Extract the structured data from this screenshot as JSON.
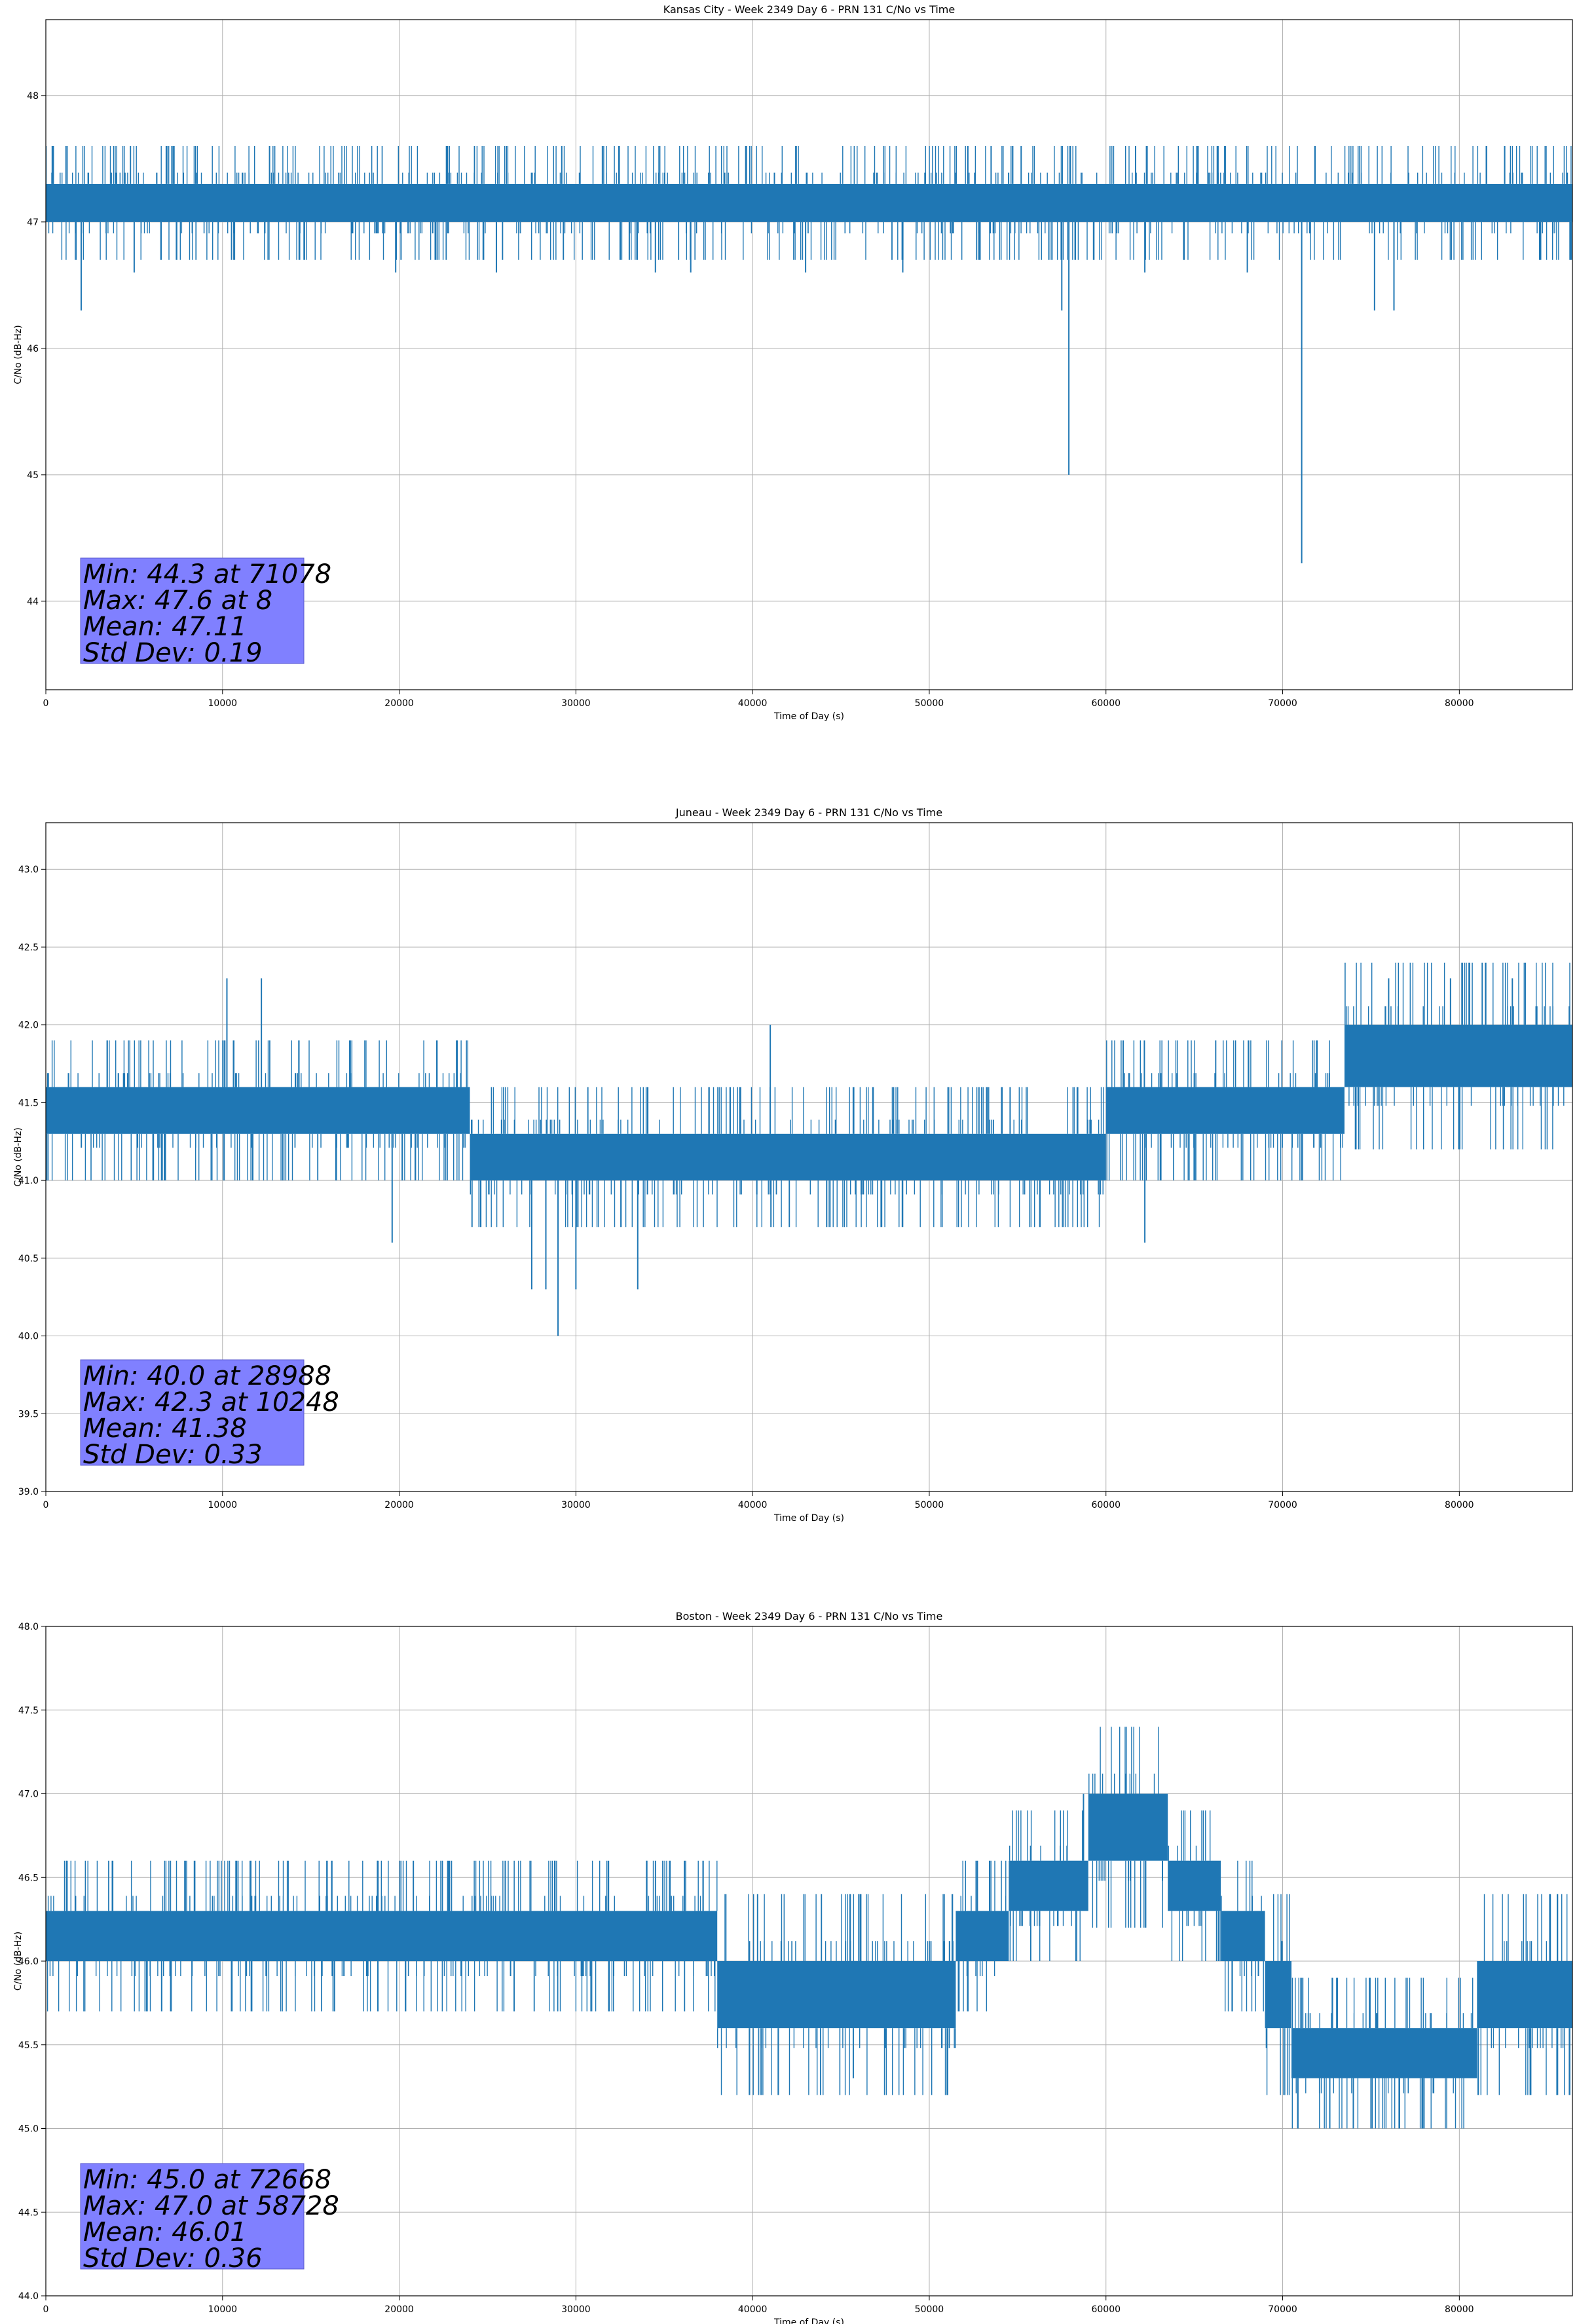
{
  "chart_data": [
    {
      "type": "line",
      "title": "Kansas City - Week 2349 Day 6 - PRN 131 C/No vs Time",
      "xlabel": "Time of Day (s)",
      "ylabel": "C/No (dB-Hz)",
      "xlim": [
        0,
        86400
      ],
      "ylim": [
        43.3,
        48.6
      ],
      "xticks": [
        0,
        10000,
        20000,
        30000,
        40000,
        50000,
        60000,
        70000,
        80000
      ],
      "xtick_labels": [
        "0",
        "10000",
        "20000",
        "30000",
        "40000",
        "50000",
        "60000",
        "70000",
        "80000"
      ],
      "yticks": [
        44,
        45,
        46,
        47,
        48
      ],
      "ytick_labels": [
        "44",
        "45",
        "46",
        "47",
        "48"
      ],
      "grid": true,
      "color": "#1f77b4",
      "stats": [
        "Min: 44.3 at 71078",
        "Max: 47.6 at 8",
        "Mean: 47.11",
        "Std Dev: 0.19"
      ],
      "stats_box_color": "#8080ff",
      "baseline_segments": [
        [
          0,
          86400,
          47.0,
          47.3
        ]
      ],
      "spikes": [
        {
          "t": 2000,
          "v": 46.3
        },
        {
          "t": 5000,
          "v": 46.6
        },
        {
          "t": 19800,
          "v": 46.6
        },
        {
          "t": 25500,
          "v": 46.6
        },
        {
          "t": 34500,
          "v": 46.6
        },
        {
          "t": 36500,
          "v": 46.6
        },
        {
          "t": 43000,
          "v": 46.6
        },
        {
          "t": 48500,
          "v": 46.6
        },
        {
          "t": 57500,
          "v": 46.3
        },
        {
          "t": 57900,
          "v": 45.0
        },
        {
          "t": 62200,
          "v": 46.6
        },
        {
          "t": 68000,
          "v": 46.6
        },
        {
          "t": 71078,
          "v": 44.3
        },
        {
          "t": 75200,
          "v": 46.3
        },
        {
          "t": 76300,
          "v": 46.3
        },
        {
          "t": 8,
          "v": 47.6
        },
        {
          "t": 400,
          "v": 47.6
        },
        {
          "t": 1200,
          "v": 47.6
        },
        {
          "t": 7200,
          "v": 47.6
        },
        {
          "t": 29200,
          "v": 47.6
        },
        {
          "t": 31500,
          "v": 47.6
        },
        {
          "t": 53500,
          "v": 47.6
        },
        {
          "t": 55200,
          "v": 47.6
        },
        {
          "t": 65200,
          "v": 47.6
        },
        {
          "t": 66300,
          "v": 47.6
        }
      ]
    },
    {
      "type": "line",
      "title": "Juneau - Week 2349 Day 6 - PRN 131 C/No vs Time",
      "xlabel": "Time of Day (s)",
      "ylabel": "C/No (dB-Hz)",
      "xlim": [
        0,
        86400
      ],
      "ylim": [
        39.0,
        43.3
      ],
      "xticks": [
        0,
        10000,
        20000,
        30000,
        40000,
        50000,
        60000,
        70000,
        80000
      ],
      "xtick_labels": [
        "0",
        "10000",
        "20000",
        "30000",
        "40000",
        "50000",
        "60000",
        "70000",
        "80000"
      ],
      "yticks": [
        39.0,
        39.5,
        40.0,
        40.5,
        41.0,
        41.5,
        42.0,
        42.5,
        43.0
      ],
      "ytick_labels": [
        "39.0",
        "39.5",
        "40.0",
        "40.5",
        "41.0",
        "41.5",
        "42.0",
        "42.5",
        "43.0"
      ],
      "grid": true,
      "color": "#1f77b4",
      "stats": [
        "Min: 40.0 at 28988",
        "Max: 42.3 at 10248",
        "Mean: 41.38",
        "Std Dev: 0.33"
      ],
      "stats_box_color": "#8080ff",
      "baseline_segments": [
        [
          0,
          24000,
          41.3,
          41.6
        ],
        [
          24000,
          60000,
          41.0,
          41.3
        ],
        [
          60000,
          73500,
          41.3,
          41.6
        ],
        [
          73500,
          86400,
          41.6,
          42.0
        ]
      ],
      "spikes": [
        {
          "t": 10248,
          "v": 42.3
        },
        {
          "t": 12200,
          "v": 42.3
        },
        {
          "t": 19600,
          "v": 40.6
        },
        {
          "t": 27500,
          "v": 40.3
        },
        {
          "t": 28300,
          "v": 40.3
        },
        {
          "t": 28988,
          "v": 40.0
        },
        {
          "t": 30000,
          "v": 40.3
        },
        {
          "t": 33500,
          "v": 40.3
        },
        {
          "t": 62200,
          "v": 40.6
        },
        {
          "t": 41000,
          "v": 42.0
        },
        {
          "t": 76000,
          "v": 42.3
        },
        {
          "t": 79500,
          "v": 42.3
        },
        {
          "t": 83000,
          "v": 42.3
        }
      ]
    },
    {
      "type": "line",
      "title": "Boston - Week 2349 Day 6 - PRN 131 C/No vs Time",
      "xlabel": "Time of Day (s)",
      "ylabel": "C/No (dB-Hz)",
      "xlim": [
        0,
        86400
      ],
      "ylim": [
        44.0,
        48.0
      ],
      "xticks": [
        0,
        10000,
        20000,
        30000,
        40000,
        50000,
        60000,
        70000,
        80000
      ],
      "xtick_labels": [
        "0",
        "10000",
        "20000",
        "30000",
        "40000",
        "50000",
        "60000",
        "70000",
        "80000"
      ],
      "yticks": [
        44.0,
        44.5,
        45.0,
        45.5,
        46.0,
        46.5,
        47.0,
        47.5,
        48.0
      ],
      "ytick_labels": [
        "44.0",
        "44.5",
        "45.0",
        "45.5",
        "46.0",
        "46.5",
        "47.0",
        "47.5",
        "48.0"
      ],
      "grid": true,
      "color": "#1f77b4",
      "stats": [
        "Min: 45.0 at 72668",
        "Max: 47.0 at 58728",
        "Mean: 46.01",
        "Std Dev: 0.36"
      ],
      "stats_box_color": "#8080ff",
      "baseline_segments": [
        [
          0,
          38000,
          46.0,
          46.3
        ],
        [
          38000,
          51500,
          45.6,
          46.0
        ],
        [
          51500,
          54500,
          46.0,
          46.3
        ],
        [
          54500,
          59000,
          46.3,
          46.6
        ],
        [
          59000,
          63500,
          46.6,
          47.0
        ],
        [
          63500,
          66500,
          46.3,
          46.6
        ],
        [
          66500,
          69000,
          46.0,
          46.3
        ],
        [
          69000,
          70500,
          45.6,
          46.0
        ],
        [
          70500,
          81000,
          45.3,
          45.6
        ],
        [
          81000,
          86400,
          45.6,
          46.0
        ]
      ],
      "spikes": [
        {
          "t": 1200,
          "v": 46.6
        },
        {
          "t": 10800,
          "v": 46.6
        },
        {
          "t": 18800,
          "v": 46.6
        },
        {
          "t": 20800,
          "v": 46.6
        },
        {
          "t": 26000,
          "v": 46.6
        },
        {
          "t": 28800,
          "v": 46.6
        },
        {
          "t": 34000,
          "v": 46.6
        },
        {
          "t": 45700,
          "v": 45.3
        },
        {
          "t": 58728,
          "v": 47.0
        },
        {
          "t": 72668,
          "v": 45.0
        },
        {
          "t": 74000,
          "v": 45.0
        },
        {
          "t": 75000,
          "v": 45.0
        },
        {
          "t": 78000,
          "v": 45.0
        }
      ]
    }
  ]
}
